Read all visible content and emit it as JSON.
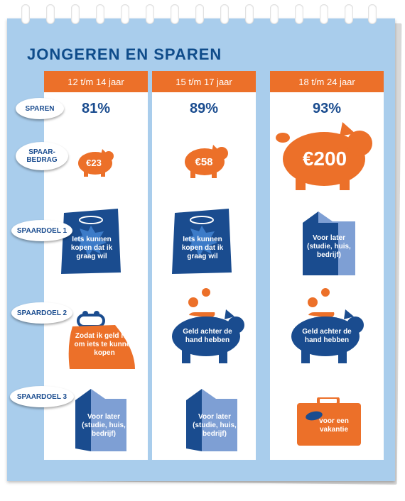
{
  "title": "JONGEREN EN SPAREN",
  "row_labels": {
    "sparen": "SPAREN",
    "spaarbedrag": "SPAAR-\nBEDRAG",
    "spaardoel1": "SPAARDOEL 1",
    "spaardoel2": "SPAARDOEL 2",
    "spaardoel3": "SPAARDOEL 3"
  },
  "columns": [
    {
      "age": "12 t/m 14 jaar",
      "sparen": "81%",
      "bedrag": "€23",
      "doel1": "Iets kunnen kopen dat ik graag wil",
      "doel2": "Zodat ik geld heb om iets te kunnen kopen",
      "doel3": "Voor later (studie, huis, bedrijf)"
    },
    {
      "age": "15 t/m 17 jaar",
      "sparen": "89%",
      "bedrag": "€58",
      "doel1": "Iets kunnen kopen dat ik graag wil",
      "doel2": "Geld achter de hand hebben",
      "doel3": "Voor later (studie, huis, bedrijf)"
    },
    {
      "age": "18 t/m 24 jaar",
      "sparen": "93%",
      "bedrag": "€200",
      "doel1": "Voor later (studie, huis, bedrijf)",
      "doel2": "Geld achter de hand hebben",
      "doel3": "voor een vakantie"
    }
  ],
  "icons": {
    "doel1": [
      "shopping-bag-icon",
      "shopping-bag-icon",
      "house-icon"
    ],
    "doel2": [
      "purse-icon",
      "piggy-bank-coins-icon",
      "piggy-bank-coins-icon"
    ],
    "doel3": [
      "house-icon",
      "house-icon",
      "suitcase-icon"
    ]
  },
  "colors": {
    "background": "#a9cdec",
    "orange": "#ec7029",
    "dark_blue": "#1a4c8f",
    "title_blue": "#0f4c8a",
    "light_blue": "#7e9fd4"
  }
}
